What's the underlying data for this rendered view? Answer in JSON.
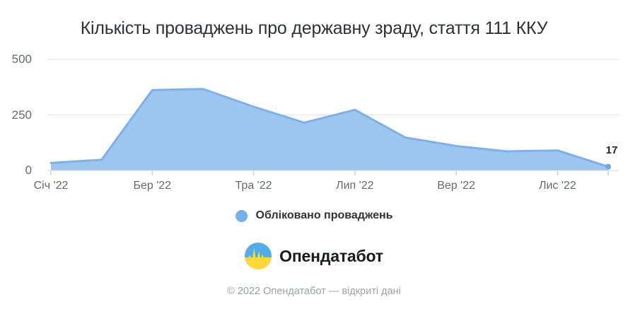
{
  "title": "Кількість проваджень про державну зраду, стаття 111 ККУ",
  "chart_data": {
    "type": "area",
    "title": "Кількість проваджень про державну зраду, стаття 111 ККУ",
    "series": [
      {
        "name": "Обліковано проваджень",
        "values": [
          34,
          48,
          362,
          367,
          287,
          215,
          273,
          148,
          110,
          86,
          90,
          17
        ]
      }
    ],
    "x_ticks": [
      {
        "index": 0,
        "label": "Січ '22"
      },
      {
        "index": 2,
        "label": "Бер '22"
      },
      {
        "index": 4,
        "label": "Тра '22"
      },
      {
        "index": 6,
        "label": "Лип '22"
      },
      {
        "index": 8,
        "label": "Вер '22"
      },
      {
        "index": 10,
        "label": "Лис '22"
      }
    ],
    "extra_tick_indices": [
      11
    ],
    "y_ticks": [
      {
        "value": 0,
        "label": "0"
      },
      {
        "value": 250,
        "label": "250"
      },
      {
        "value": 500,
        "label": "500"
      }
    ],
    "ylim": [
      0,
      500
    ],
    "grid": true,
    "legend_position": "bottom",
    "last_value_label": "17",
    "colors": {
      "area_fill": "#9CC5F0",
      "area_stroke": "#7FB0E8",
      "last_dot": "#6FA6E4",
      "gridline": "#E4E4E4",
      "baseline": "#D6D8DB",
      "tick_mark": "#C5D4E8"
    }
  },
  "legend": {
    "label": "Обліковано проваджень"
  },
  "logo": {
    "text": "Опендатабот",
    "icon_blue": "#53ABE7",
    "icon_yellow": "#FFD83E"
  },
  "footer": {
    "text": "© 2022 Опендатабот — відкриті дані"
  }
}
